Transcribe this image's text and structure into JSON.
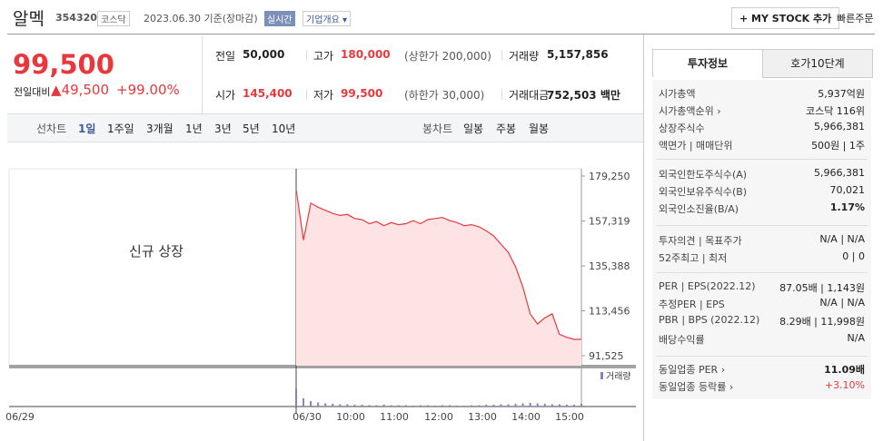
{
  "header": {
    "title": "알멕",
    "code": "354320",
    "market": "코스닥",
    "date": "2023.06.30 기준(장마감)",
    "realtime": "실시간",
    "company": "기업개요 ▾",
    "mystock": "+ MY STOCK 추가",
    "quick": "빠른주문"
  },
  "price": {
    "current": "99,500",
    "change_label": "전일대비",
    "change": "▲49,500",
    "percent": "+99.00%"
  },
  "stats": [
    {
      "label": "전일",
      "value": "50,000"
    },
    {
      "label": "고가",
      "value": "180,000",
      "note": "(상한가 200,000)"
    },
    {
      "label": "거래량",
      "value": "5,157,856"
    },
    {
      "label": "시가",
      "value": "145,400"
    },
    {
      "label": "저가",
      "value": "99,500",
      "note": "(하한가 30,000)"
    },
    {
      "label": "거래대금",
      "value": "752,503 백만"
    }
  ],
  "tabs": {
    "line_label": "선차트",
    "line": [
      "1일",
      "1주일",
      "3개월",
      "1년",
      "3년",
      "5년",
      "10년"
    ],
    "candle_label": "봉차트",
    "candle": [
      "일봉",
      "주봉",
      "월봉"
    ]
  },
  "chart_data": {
    "type": "line",
    "annotation": "신규 상장",
    "color": "#e8383d",
    "ylim": [
      86652,
      182794
    ],
    "yticks": [
      {
        "value": 179250,
        "label": "179,250"
      },
      {
        "value": 157319,
        "label": "157,319"
      },
      {
        "value": 135388,
        "label": "135,388"
      },
      {
        "value": 113456,
        "label": "113,456"
      },
      {
        "value": 91525,
        "label": "91,525"
      }
    ],
    "values": [
      172600,
      148000,
      166000,
      164000,
      162500,
      161000,
      160000,
      160500,
      158500,
      158000,
      156000,
      157000,
      155000,
      156500,
      155500,
      156000,
      157500,
      156000,
      158000,
      158500,
      159000,
      157500,
      156500,
      155000,
      155500,
      154500,
      152500,
      150000,
      146000,
      142000,
      135000,
      125000,
      112000,
      107000,
      110000,
      112000,
      102000,
      100500,
      99500,
      99500
    ],
    "volume_label": "거래량",
    "volume": [
      40,
      18,
      12,
      9,
      7,
      6,
      5,
      5,
      4,
      4,
      3,
      3,
      4,
      3,
      3,
      3,
      2,
      3,
      3,
      2,
      3,
      3,
      2,
      2,
      3,
      3,
      4,
      4,
      5,
      5,
      6,
      7,
      8,
      7,
      6,
      5,
      5,
      4,
      4,
      6
    ],
    "time_labels": [
      "06/29",
      "06/30",
      "10:00",
      "11:00",
      "12:00",
      "13:00",
      "14:00",
      "15:00"
    ]
  },
  "side": {
    "tabs": [
      "투자정보",
      "호가10단계"
    ],
    "rows": [
      {
        "label": "시가총액",
        "value": "5,937억원"
      },
      {
        "label": "시가총액순위 ›",
        "value": "코스닥 116위"
      },
      {
        "label": "상장주식수",
        "value": "5,966,381"
      },
      {
        "label": "액면가 | 매매단위",
        "value": "500원 | 1주"
      },
      {
        "label": "외국인한도주식수(A)",
        "value": "5,966,381"
      },
      {
        "label": "외국인보유주식수(B)",
        "value": "70,021"
      },
      {
        "label": "외국인소진율(B/A)",
        "value": "1.17%"
      },
      {
        "label": "투자의견 | 목표주가",
        "value": "N/A | N/A"
      },
      {
        "label": "52주최고 | 최저",
        "value": "0 | 0"
      },
      {
        "label": "PER | EPS(2022.12)",
        "value": "87.05배 | 1,143원"
      },
      {
        "label": "추정PER | EPS",
        "value": "N/A | N/A"
      },
      {
        "label": "PBR | BPS (2022.12)",
        "value": "8.29배 | 11,998원"
      },
      {
        "label": "배당수익률",
        "value": "N/A"
      },
      {
        "label": "동일업종 PER ›",
        "value": "11.09배"
      },
      {
        "label": "동일업종 등락률 ›",
        "value": "+3.10%"
      }
    ]
  }
}
